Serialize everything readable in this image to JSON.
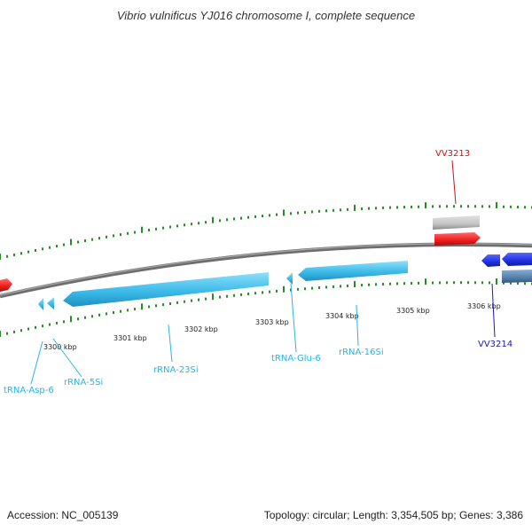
{
  "title": "Vibrio vulnificus YJ016 chromosome I, complete sequence",
  "footer": {
    "accession": "Accession: NC_005139",
    "summary": "Topology: circular; Length: 3,354,505 bp; Genes: 3,386"
  },
  "colors": {
    "rna": "#4cc3ee",
    "rna_label": "#2bb4e0",
    "gene_red": "#ee2222",
    "gene_red_label": "#cc1111",
    "gene_blue": "#2233dd",
    "gene_blue_label": "#1a1aaa",
    "gene_grey": "#c8c8c8",
    "gene_steel": "#5a86b0",
    "backbone": "#8a8a8a",
    "tick": "#2a8a2a"
  },
  "scale_labels": [
    "3300 kbp",
    "3301 kbp",
    "3302 kbp",
    "3303 kbp",
    "3304 kbp",
    "3305 kbp",
    "3306 kbp"
  ],
  "features": {
    "tRNA-Asp-6": "tRNA-Asp-6",
    "rRNA-5Si": "rRNA-5Si",
    "rRNA-23Si": "rRNA-23Si",
    "tRNA-Glu-6": "tRNA-Glu-6",
    "rRNA-16Si": "rRNA-16Si",
    "VV3213": "VV3213",
    "VV3214": "VV3214"
  }
}
